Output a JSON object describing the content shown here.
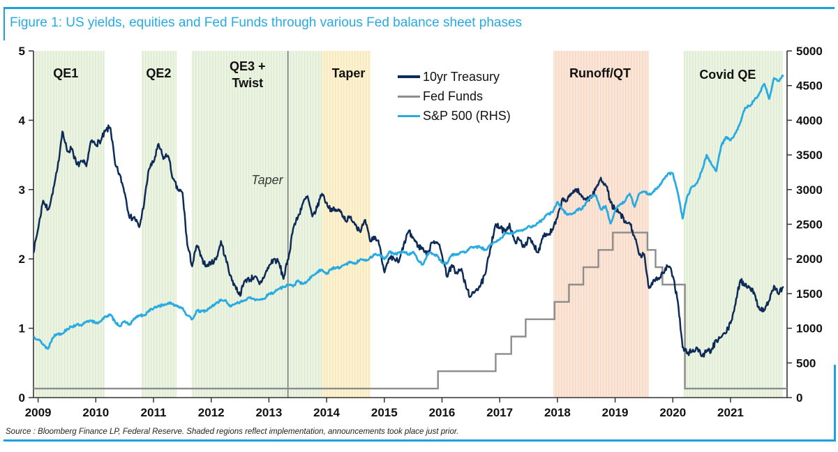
{
  "figure": {
    "title": "Figure 1: US yields, equities and Fed Funds through various Fed balance sheet phases",
    "source_note": "Source : Bloomberg Finance LP, Federal Reserve. Shaded regions reflect implementation, announcements took place just prior.",
    "accent_color": "#1da1dd"
  },
  "chart_data": {
    "type": "line",
    "title": "Figure 1: US yields, equities and Fed Funds through various Fed balance sheet phases",
    "x_range": [
      2008.92,
      2021.98
    ],
    "x_ticks": [
      2009,
      2010,
      2011,
      2012,
      2013,
      2014,
      2015,
      2016,
      2017,
      2018,
      2019,
      2020,
      2021
    ],
    "left_axis": {
      "range": [
        0,
        5
      ],
      "ticks": [
        0,
        1,
        2,
        3,
        4,
        5
      ]
    },
    "right_axis": {
      "range": [
        0,
        5000
      ],
      "ticks": [
        0,
        500,
        1000,
        1500,
        2000,
        2500,
        3000,
        3500,
        4000,
        4500,
        5000
      ]
    },
    "grid": false,
    "legend_position": "top-center",
    "palette": {
      "green": {
        "base": "#edf4e4",
        "stripe": "#dcead0"
      },
      "yellow": {
        "base": "#fdf3d4",
        "stripe": "#f7e7b8"
      },
      "pink": {
        "base": "#fbe7d9",
        "stripe": "#f6d6c2"
      }
    },
    "regions": [
      {
        "label": "QE1",
        "start": 2008.94,
        "end": 2010.15,
        "color": "green",
        "label_x": 2009.48,
        "label_y": 4.62
      },
      {
        "label": "QE2",
        "start": 2010.79,
        "end": 2011.4,
        "color": "green",
        "label_x": 2011.09,
        "label_y": 4.62
      },
      {
        "label": "QE3 +\nTwist",
        "start": 2011.66,
        "end": 2013.92,
        "color": "green",
        "label_x": 2012.63,
        "label_y": 4.72
      },
      {
        "label": "Taper",
        "start": 2013.92,
        "end": 2014.76,
        "color": "yellow",
        "label_x": 2014.38,
        "label_y": 4.62
      },
      {
        "label": "Runoff/QT",
        "start": 2017.93,
        "end": 2019.58,
        "color": "pink",
        "label_x": 2018.74,
        "label_y": 4.62
      },
      {
        "label": "Covid QE",
        "start": 2020.19,
        "end": 2021.9,
        "color": "green",
        "label_x": 2020.95,
        "label_y": 4.6
      }
    ],
    "annotation": {
      "text": "Taper",
      "line_x": 2013.33,
      "label_y": 3.08,
      "line_color": "#757575"
    },
    "series": [
      {
        "name": "10yr Treasury",
        "axis": "left",
        "color": "#0e2b57",
        "style": "noisy-line",
        "x_start": 2008.92,
        "x_step": 0.08333,
        "values": [
          2.1,
          2.45,
          2.85,
          2.7,
          2.95,
          3.3,
          3.85,
          3.55,
          3.6,
          3.35,
          3.4,
          3.35,
          3.7,
          3.65,
          3.7,
          3.85,
          3.9,
          3.35,
          3.2,
          2.95,
          2.6,
          2.6,
          2.45,
          2.8,
          3.3,
          3.4,
          3.65,
          3.45,
          3.5,
          3.15,
          3.0,
          2.95,
          2.2,
          1.9,
          2.2,
          2.0,
          1.9,
          1.95,
          2.0,
          2.25,
          2.0,
          1.75,
          1.6,
          1.48,
          1.7,
          1.7,
          1.75,
          1.63,
          1.75,
          1.9,
          2.0,
          1.95,
          1.72,
          2.0,
          2.45,
          2.6,
          2.8,
          2.9,
          2.6,
          2.75,
          2.95,
          2.8,
          2.7,
          2.7,
          2.68,
          2.55,
          2.6,
          2.5,
          2.4,
          2.55,
          2.25,
          2.32,
          2.2,
          1.8,
          2.0,
          2.0,
          1.95,
          2.2,
          2.4,
          2.3,
          2.18,
          2.15,
          2.07,
          2.25,
          2.25,
          2.05,
          1.75,
          1.9,
          1.8,
          1.85,
          1.58,
          1.45,
          1.56,
          1.62,
          1.78,
          2.15,
          2.48,
          2.45,
          2.4,
          2.5,
          2.26,
          2.28,
          2.18,
          2.3,
          2.2,
          2.1,
          2.35,
          2.35,
          2.42,
          2.6,
          2.86,
          2.84,
          2.96,
          3.0,
          2.9,
          2.87,
          2.89,
          3.02,
          3.16,
          3.08,
          2.82,
          2.7,
          2.66,
          2.52,
          2.52,
          2.32,
          2.05,
          2.06,
          1.58,
          1.7,
          1.72,
          1.8,
          1.9,
          1.75,
          1.4,
          0.72,
          0.64,
          0.67,
          0.72,
          0.6,
          0.66,
          0.68,
          0.82,
          0.87,
          0.93,
          1.08,
          1.35,
          1.7,
          1.62,
          1.6,
          1.48,
          1.28,
          1.26,
          1.4,
          1.6,
          1.5,
          1.6
        ]
      },
      {
        "name": "Fed Funds",
        "axis": "left",
        "color": "#8c8c8c",
        "style": "step",
        "steps": [
          {
            "x": 2008.92,
            "y": 0.13
          },
          {
            "x": 2015.93,
            "y": 0.38
          },
          {
            "x": 2016.93,
            "y": 0.63
          },
          {
            "x": 2017.2,
            "y": 0.88
          },
          {
            "x": 2017.45,
            "y": 1.13
          },
          {
            "x": 2017.95,
            "y": 1.38
          },
          {
            "x": 2018.2,
            "y": 1.63
          },
          {
            "x": 2018.45,
            "y": 1.88
          },
          {
            "x": 2018.71,
            "y": 2.13
          },
          {
            "x": 2018.96,
            "y": 2.38
          },
          {
            "x": 2019.56,
            "y": 2.13
          },
          {
            "x": 2019.7,
            "y": 1.88
          },
          {
            "x": 2019.82,
            "y": 1.63
          },
          {
            "x": 2020.21,
            "y": 0.13
          }
        ]
      },
      {
        "name": "S&P 500 (RHS)",
        "axis": "right",
        "color": "#29abe2",
        "style": "noisy-line",
        "x_start": 2008.92,
        "x_step": 0.08333,
        "values": [
          880,
          840,
          770,
          700,
          870,
          920,
          925,
          990,
          1020,
          1055,
          1035,
          1095,
          1115,
          1070,
          1105,
          1170,
          1195,
          1090,
          1030,
          1100,
          1050,
          1140,
          1185,
          1180,
          1255,
          1285,
          1325,
          1330,
          1363,
          1345,
          1320,
          1292,
          1180,
          1130,
          1253,
          1245,
          1255,
          1310,
          1365,
          1408,
          1398,
          1310,
          1362,
          1379,
          1405,
          1440,
          1412,
          1416,
          1426,
          1498,
          1515,
          1569,
          1598,
          1631,
          1606,
          1686,
          1633,
          1682,
          1757,
          1806,
          1848,
          1783,
          1859,
          1872,
          1884,
          1924,
          1960,
          1930,
          2003,
          1972,
          2018,
          2068,
          2059,
          1995,
          2105,
          2068,
          2086,
          2107,
          2063,
          2104,
          1972,
          1920,
          2079,
          2080,
          2044,
          1940,
          1932,
          2060,
          2065,
          2097,
          2099,
          2174,
          2171,
          2168,
          2126,
          2199,
          2239,
          2279,
          2364,
          2363,
          2384,
          2412,
          2423,
          2470,
          2472,
          2519,
          2575,
          2648,
          2674,
          2824,
          2714,
          2641,
          2648,
          2705,
          2718,
          2816,
          2902,
          2914,
          2712,
          2760,
          2507,
          2704,
          2784,
          2834,
          2946,
          2752,
          2942,
          2980,
          2926,
          2977,
          3038,
          3141,
          3231,
          3226,
          2954,
          2585,
          2912,
          3044,
          3100,
          3271,
          3500,
          3363,
          3270,
          3622,
          3756,
          3714,
          3811,
          3973,
          4181,
          4204,
          4298,
          4395,
          4523,
          4308,
          4605,
          4567,
          4650
        ]
      }
    ]
  }
}
